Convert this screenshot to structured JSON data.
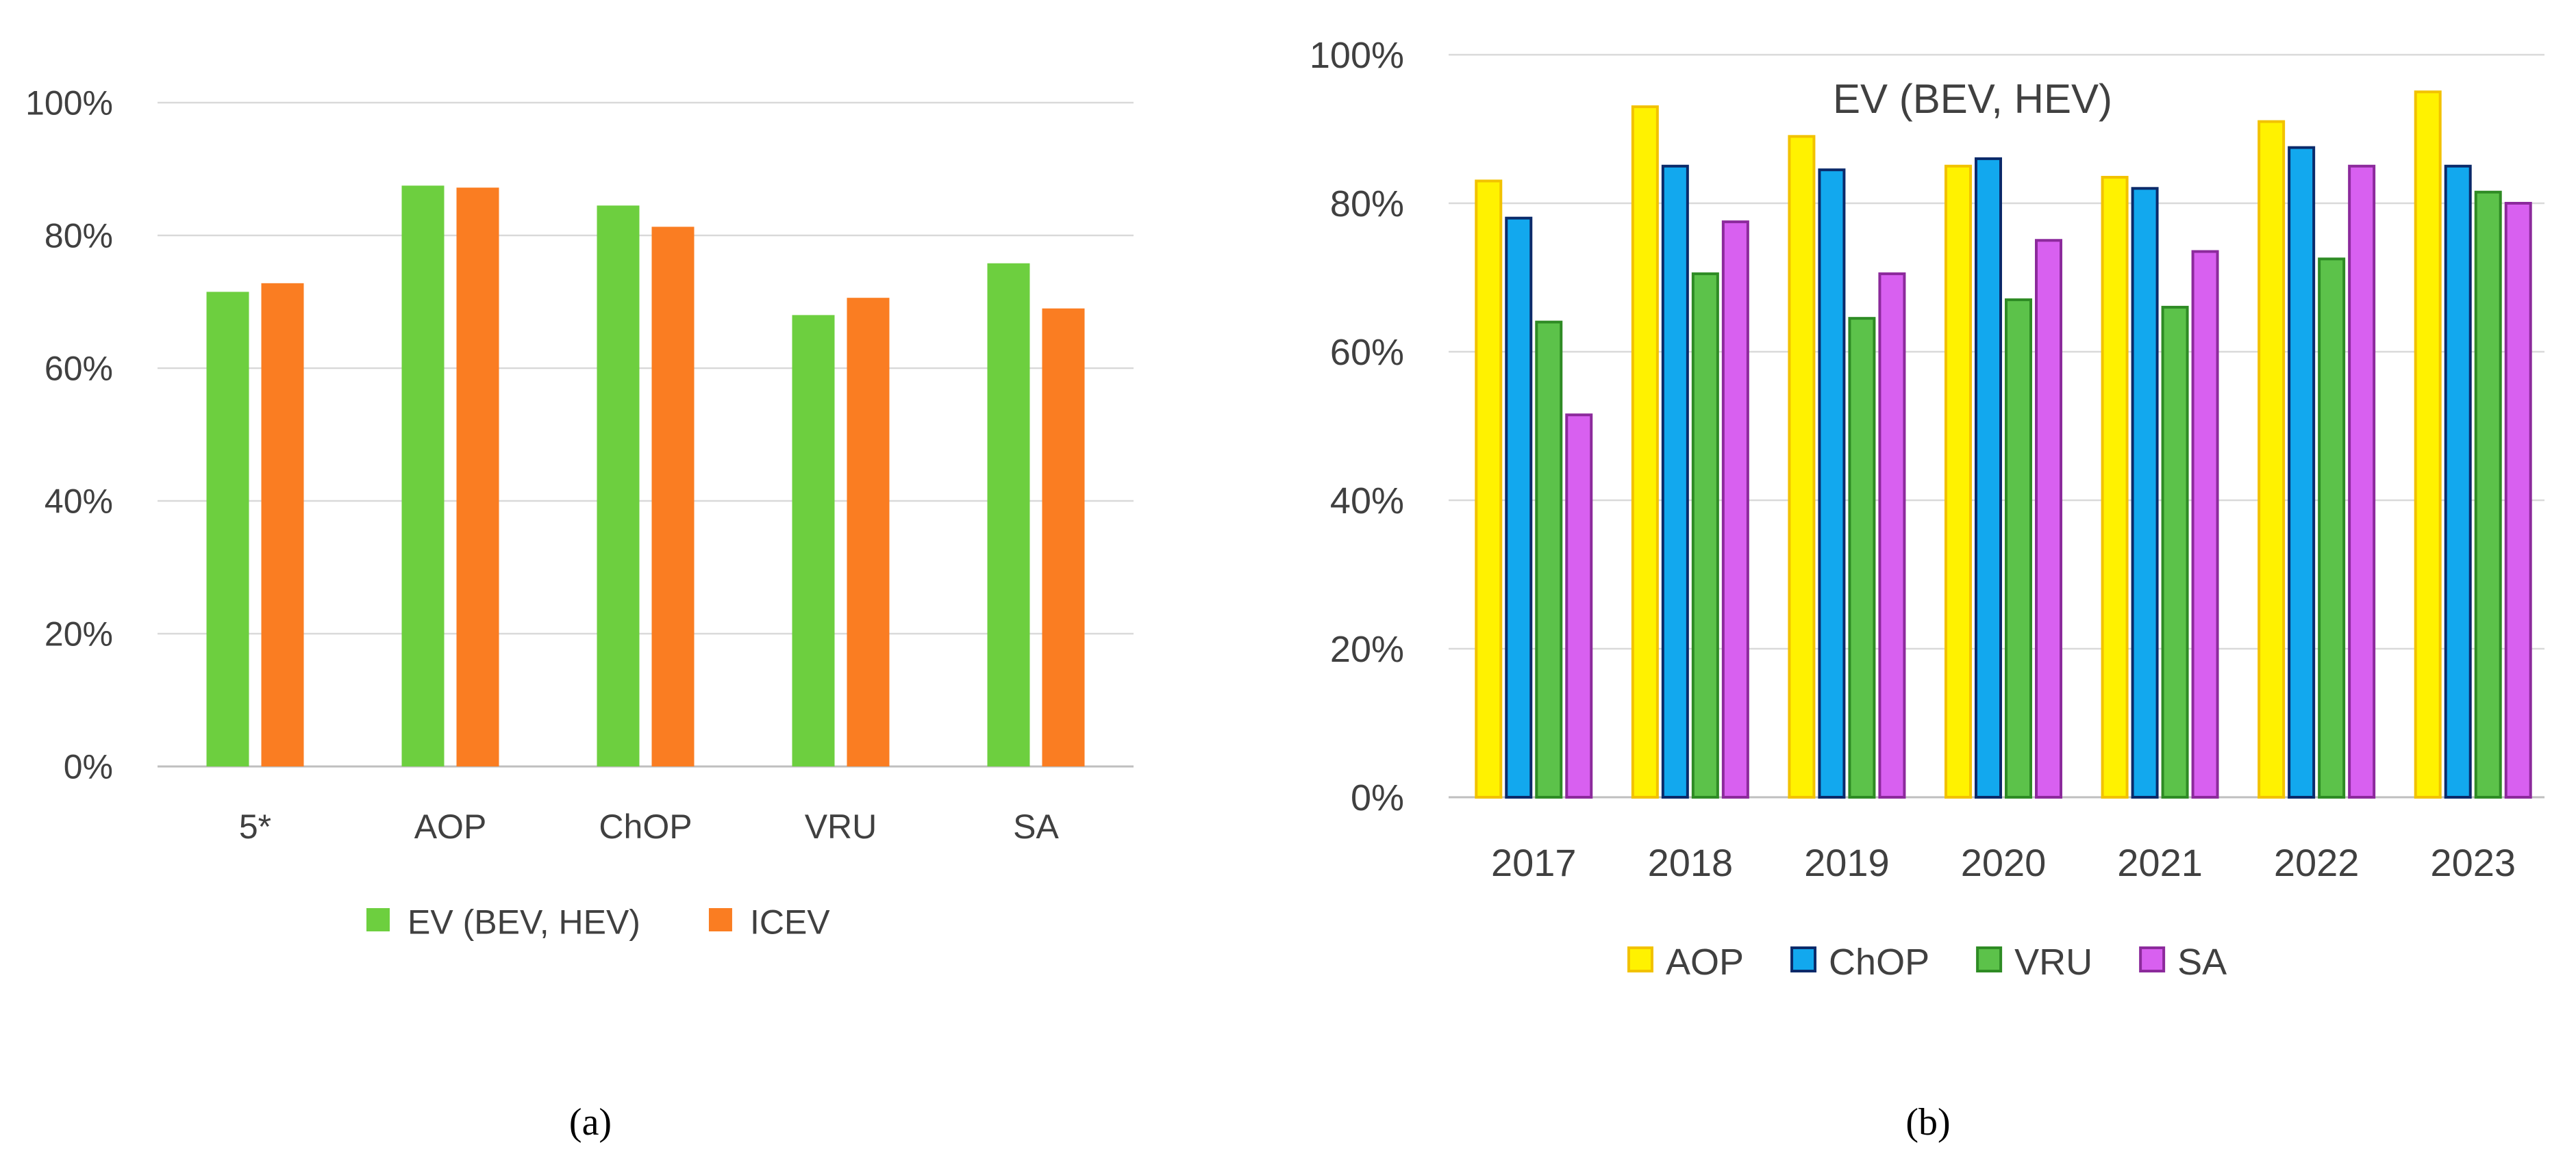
{
  "chart_data": [
    {
      "panel": "a",
      "type": "bar",
      "title": "",
      "xlabel": "",
      "ylabel": "",
      "categories": [
        "5*",
        "AOP",
        "ChOP",
        "VRU",
        "SA"
      ],
      "series": [
        {
          "name": "EV (BEV, HEV)",
          "color": "#6DCF3F",
          "values": [
            71.5,
            87.5,
            84.5,
            68.0,
            75.8
          ]
        },
        {
          "name": "ICEV",
          "color": "#FA7D22",
          "values": [
            72.8,
            87.2,
            81.3,
            70.6,
            69.0
          ]
        }
      ],
      "ylim": [
        0,
        100
      ],
      "yticks": [
        0,
        20,
        40,
        60,
        80,
        100
      ],
      "ytick_labels": [
        "0%",
        "20%",
        "40%",
        "60%",
        "80%",
        "100%"
      ],
      "grid": true,
      "legend": "bottom",
      "caption": "(a)"
    },
    {
      "panel": "b",
      "type": "bar",
      "title": "EV (BEV, HEV)",
      "xlabel": "",
      "ylabel": "",
      "categories": [
        "2017",
        "2018",
        "2019",
        "2020",
        "2021",
        "2022",
        "2023"
      ],
      "series": [
        {
          "name": "AOP",
          "color": "#FFF200",
          "edge": "#F2C200",
          "values": [
            83.0,
            93.0,
            89.0,
            85.0,
            83.5,
            91.0,
            95.0
          ]
        },
        {
          "name": "ChOP",
          "color": "#12A8EE",
          "edge": "#0B2A6A",
          "values": [
            78.0,
            85.0,
            84.5,
            86.0,
            82.0,
            87.5,
            85.0
          ]
        },
        {
          "name": "VRU",
          "color": "#5CC24A",
          "edge": "#2E8B24",
          "values": [
            64.0,
            70.5,
            64.5,
            67.0,
            66.0,
            72.5,
            81.5
          ]
        },
        {
          "name": "SA",
          "color": "#D860F0",
          "edge": "#8C2A9C",
          "values": [
            51.5,
            77.5,
            70.5,
            75.0,
            73.5,
            85.0,
            80.0
          ]
        }
      ],
      "ylim": [
        0,
        100
      ],
      "yticks": [
        0,
        20,
        40,
        60,
        80,
        100
      ],
      "ytick_labels": [
        "0%",
        "20%",
        "40%",
        "60%",
        "80%",
        "100%"
      ],
      "grid": true,
      "legend": "bottom",
      "caption": "(b)"
    }
  ]
}
